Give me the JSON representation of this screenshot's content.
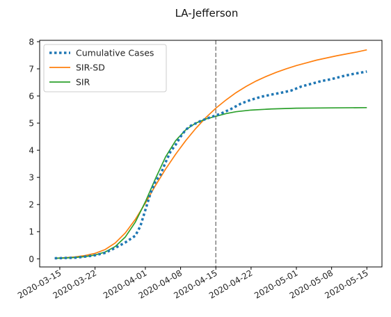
{
  "chart_data": {
    "type": "line",
    "title": "LA-Jefferson",
    "xlabel": "",
    "ylabel": "",
    "ylim": [
      -0.3,
      8.05
    ],
    "xlim": [
      "2020-03-11",
      "2020-05-18"
    ],
    "grid": false,
    "legend_placement": "top-left",
    "x_ticks": [
      "2020-03-15",
      "2020-03-22",
      "2020-04-01",
      "2020-04-08",
      "2020-04-15",
      "2020-04-22",
      "2020-05-01",
      "2020-05-08",
      "2020-05-15"
    ],
    "y_ticks": [
      0,
      1,
      2,
      3,
      4,
      5,
      6,
      7,
      8
    ],
    "vline": {
      "x": "2020-04-15",
      "style": "dashed",
      "color": "#808080"
    },
    "series": [
      {
        "name": "Cumulative Cases",
        "color": "#1f77b4",
        "style": "dotted",
        "points": [
          [
            "2020-03-14",
            0.02
          ],
          [
            "2020-03-16",
            0.03
          ],
          [
            "2020-03-18",
            0.04
          ],
          [
            "2020-03-20",
            0.08
          ],
          [
            "2020-03-22",
            0.13
          ],
          [
            "2020-03-24",
            0.22
          ],
          [
            "2020-03-26",
            0.4
          ],
          [
            "2020-03-28",
            0.6
          ],
          [
            "2020-03-30",
            0.85
          ],
          [
            "2020-03-31",
            1.2
          ],
          [
            "2020-04-01",
            1.8
          ],
          [
            "2020-04-02",
            2.4
          ],
          [
            "2020-04-03",
            2.85
          ],
          [
            "2020-04-04",
            3.1
          ],
          [
            "2020-04-05",
            3.55
          ],
          [
            "2020-04-06",
            3.95
          ],
          [
            "2020-04-07",
            4.2
          ],
          [
            "2020-04-08",
            4.5
          ],
          [
            "2020-04-09",
            4.75
          ],
          [
            "2020-04-10",
            4.9
          ],
          [
            "2020-04-12",
            5.08
          ],
          [
            "2020-04-14",
            5.22
          ],
          [
            "2020-04-16",
            5.35
          ],
          [
            "2020-04-18",
            5.52
          ],
          [
            "2020-04-20",
            5.72
          ],
          [
            "2020-04-22",
            5.86
          ],
          [
            "2020-04-24",
            5.97
          ],
          [
            "2020-04-26",
            6.05
          ],
          [
            "2020-04-28",
            6.12
          ],
          [
            "2020-04-30",
            6.2
          ],
          [
            "2020-05-02",
            6.35
          ],
          [
            "2020-05-04",
            6.45
          ],
          [
            "2020-05-06",
            6.55
          ],
          [
            "2020-05-08",
            6.62
          ],
          [
            "2020-05-10",
            6.72
          ],
          [
            "2020-05-12",
            6.8
          ],
          [
            "2020-05-15",
            6.9
          ]
        ]
      },
      {
        "name": "SIR-SD",
        "color": "#ff7f0e",
        "style": "solid",
        "points": [
          [
            "2020-03-14",
            0.02
          ],
          [
            "2020-03-16",
            0.04
          ],
          [
            "2020-03-18",
            0.07
          ],
          [
            "2020-03-20",
            0.12
          ],
          [
            "2020-03-22",
            0.2
          ],
          [
            "2020-03-24",
            0.34
          ],
          [
            "2020-03-26",
            0.58
          ],
          [
            "2020-03-28",
            0.95
          ],
          [
            "2020-03-30",
            1.45
          ],
          [
            "2020-04-01",
            2.05
          ],
          [
            "2020-04-03",
            2.7
          ],
          [
            "2020-04-05",
            3.3
          ],
          [
            "2020-04-07",
            3.85
          ],
          [
            "2020-04-09",
            4.35
          ],
          [
            "2020-04-11",
            4.8
          ],
          [
            "2020-04-13",
            5.2
          ],
          [
            "2020-04-15",
            5.55
          ],
          [
            "2020-04-17",
            5.85
          ],
          [
            "2020-04-19",
            6.12
          ],
          [
            "2020-04-21",
            6.35
          ],
          [
            "2020-04-23",
            6.55
          ],
          [
            "2020-04-25",
            6.72
          ],
          [
            "2020-04-27",
            6.87
          ],
          [
            "2020-04-29",
            7.0
          ],
          [
            "2020-05-01",
            7.12
          ],
          [
            "2020-05-03",
            7.22
          ],
          [
            "2020-05-05",
            7.32
          ],
          [
            "2020-05-07",
            7.4
          ],
          [
            "2020-05-09",
            7.48
          ],
          [
            "2020-05-11",
            7.55
          ],
          [
            "2020-05-13",
            7.62
          ],
          [
            "2020-05-15",
            7.7
          ]
        ]
      },
      {
        "name": "SIR",
        "color": "#2ca02c",
        "style": "solid",
        "points": [
          [
            "2020-03-14",
            0.02
          ],
          [
            "2020-03-16",
            0.03
          ],
          [
            "2020-03-18",
            0.05
          ],
          [
            "2020-03-20",
            0.08
          ],
          [
            "2020-03-22",
            0.14
          ],
          [
            "2020-03-24",
            0.25
          ],
          [
            "2020-03-26",
            0.45
          ],
          [
            "2020-03-28",
            0.8
          ],
          [
            "2020-03-30",
            1.35
          ],
          [
            "2020-04-01",
            2.1
          ],
          [
            "2020-04-03",
            2.95
          ],
          [
            "2020-04-05",
            3.75
          ],
          [
            "2020-04-07",
            4.35
          ],
          [
            "2020-04-09",
            4.75
          ],
          [
            "2020-04-11",
            5.0
          ],
          [
            "2020-04-13",
            5.15
          ],
          [
            "2020-04-15",
            5.25
          ],
          [
            "2020-04-17",
            5.35
          ],
          [
            "2020-04-19",
            5.42
          ],
          [
            "2020-04-22",
            5.48
          ],
          [
            "2020-04-26",
            5.52
          ],
          [
            "2020-05-01",
            5.55
          ],
          [
            "2020-05-08",
            5.56
          ],
          [
            "2020-05-15",
            5.57
          ]
        ]
      }
    ]
  }
}
